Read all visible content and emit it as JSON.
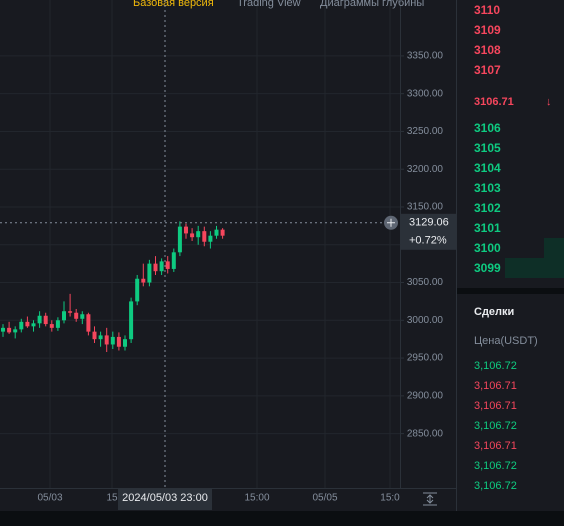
{
  "tabs": [
    "Базовая версия",
    "Trading View",
    "Диаграммы глубины"
  ],
  "chart_data": {
    "type": "candlestick",
    "open": [
      2985,
      2990,
      2984,
      2988,
      2998,
      2992,
      2996,
      3006,
      2995,
      2990,
      3000,
      3012,
      3010,
      3002,
      3008,
      2985,
      2975,
      2980,
      2968,
      2978,
      2965,
      2975,
      3025,
      3055,
      3050,
      3075,
      3065,
      3078,
      3068,
      3090,
      3124,
      3115,
      3110,
      3118,
      3104,
      3112,
      3120
    ],
    "high": [
      2995,
      2998,
      2992,
      3002,
      3005,
      3000,
      3012,
      3010,
      3000,
      3004,
      3025,
      3035,
      3015,
      3012,
      3010,
      2992,
      2985,
      2990,
      2985,
      2984,
      2980,
      3030,
      3060,
      3075,
      3080,
      3085,
      3082,
      3085,
      3095,
      3131,
      3128,
      3122,
      3125,
      3124,
      3118,
      3125,
      3122
    ],
    "low": [
      2978,
      2982,
      2976,
      2984,
      2990,
      2985,
      2990,
      2992,
      2985,
      2986,
      2996,
      3005,
      2998,
      2995,
      2980,
      2970,
      2965,
      2958,
      2962,
      2960,
      2960,
      2970,
      3020,
      3045,
      3045,
      3060,
      3060,
      3062,
      3064,
      3085,
      3108,
      3105,
      3100,
      3098,
      3095,
      3108,
      3108
    ],
    "close": [
      2990,
      2984,
      2988,
      2998,
      2992,
      2996,
      3006,
      2995,
      2990,
      3000,
      3012,
      3010,
      3002,
      3008,
      2985,
      2975,
      2980,
      2968,
      2978,
      2965,
      2975,
      3025,
      3055,
      3050,
      3075,
      3065,
      3078,
      3068,
      3090,
      3124,
      3115,
      3110,
      3118,
      3104,
      3112,
      3120,
      3112
    ],
    "up_color": "#0ecb81",
    "down_color": "#f6465d",
    "ylim": [
      2778,
      3424
    ],
    "yticks": [
      {
        "value": 3350,
        "label": "3350.00"
      },
      {
        "value": 3300,
        "label": "3300.00"
      },
      {
        "value": 3250,
        "label": "3250.00"
      },
      {
        "value": 3200,
        "label": "3200.00"
      },
      {
        "value": 3150,
        "label": "3150.00"
      },
      {
        "value": 3100,
        "label": "3100.00"
      },
      {
        "value": 3050,
        "label": "3050.00"
      },
      {
        "value": 3000,
        "label": "3000.00"
      },
      {
        "value": 2950,
        "label": "2950.00"
      },
      {
        "value": 2900,
        "label": "2900.00"
      },
      {
        "value": 2850,
        "label": "2850.00"
      }
    ],
    "x_labels": [
      "05/03",
      "15",
      "15:00",
      "05/05",
      "15:0"
    ],
    "crosshair": {
      "time": "2024/05/03 23:00",
      "value": 3129.06,
      "change": "+0.72%"
    },
    "grid": true
  },
  "order_book": {
    "asks": [
      "3110",
      "3109",
      "3108",
      "3107"
    ],
    "last_price": "3106.71",
    "arrow": "↓",
    "bids": [
      "3106",
      "3105",
      "3104",
      "3103",
      "3102",
      "3101",
      "3100",
      "3099"
    ]
  },
  "trades": {
    "title": "Сделки",
    "header": "Цена(USDT)",
    "rows": [
      {
        "price": "3,106.72",
        "color": "#0ecb81"
      },
      {
        "price": "3,106.71",
        "color": "#f6465d"
      },
      {
        "price": "3,106.71",
        "color": "#f6465d"
      },
      {
        "price": "3,106.72",
        "color": "#0ecb81"
      },
      {
        "price": "3,106.71",
        "color": "#f6465d"
      },
      {
        "price": "3,106.72",
        "color": "#0ecb81"
      },
      {
        "price": "3,106.72",
        "color": "#0ecb81"
      }
    ]
  }
}
